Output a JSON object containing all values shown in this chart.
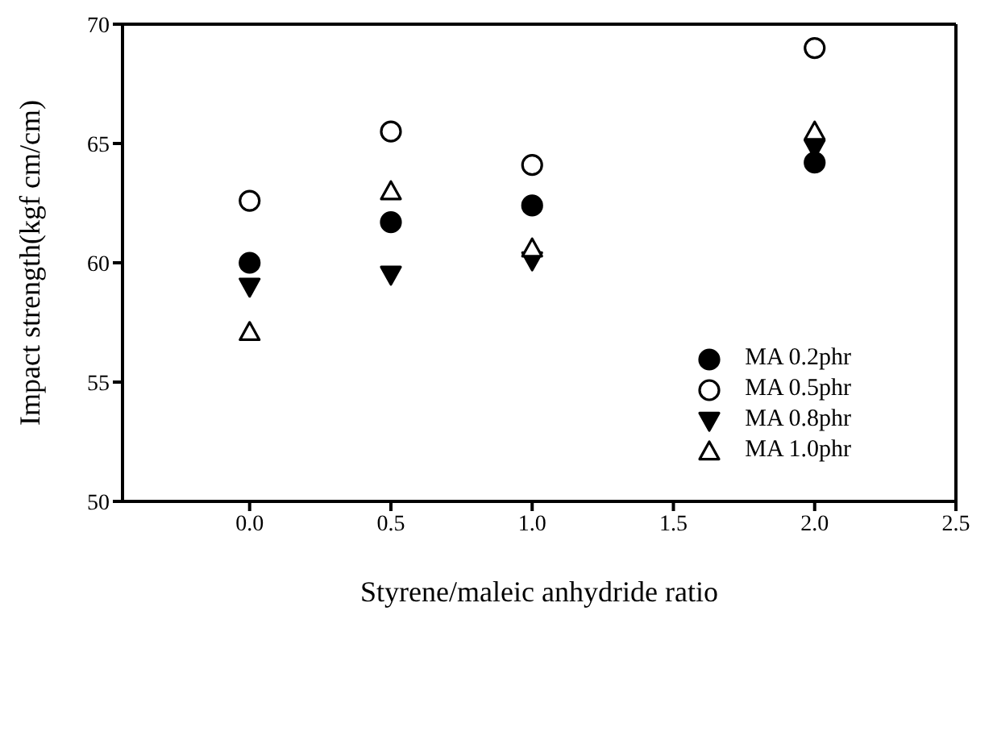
{
  "chart_data": {
    "type": "scatter",
    "xlabel": "Styrene/maleic anhydride ratio",
    "ylabel": "Impact strength(kgf cm/cm)",
    "x": [
      0,
      0.5,
      1,
      2
    ],
    "xlim": [
      -0.45,
      2.5
    ],
    "xticks": [
      {
        "value": 0,
        "label": "0.0"
      },
      {
        "value": 0.5,
        "label": "0.5"
      },
      {
        "value": 1,
        "label": "1.0"
      },
      {
        "value": 1.5,
        "label": "1.5"
      },
      {
        "value": 2,
        "label": "2.0"
      },
      {
        "value": 2.5,
        "label": "2.5"
      }
    ],
    "ylim": [
      50,
      70
    ],
    "yticks": [
      50,
      55,
      60,
      65,
      70
    ],
    "legend": "right",
    "series": [
      {
        "name": "MA 0.2phr",
        "color": "#000000",
        "marker": "circle",
        "values": [
          60.0,
          61.7,
          62.4,
          64.2
        ]
      },
      {
        "name": "MA 0.5phr",
        "color": "#000000",
        "marker": "circle-open",
        "values": [
          62.6,
          65.5,
          64.1,
          69.0
        ]
      },
      {
        "name": "MA 0.8phr",
        "color": "#000000",
        "marker": "triangle-down",
        "values": [
          59.0,
          59.5,
          60.1,
          64.8
        ]
      },
      {
        "name": "MA 1.0phr",
        "color": "#000000",
        "marker": "triangle-open",
        "values": [
          57.1,
          63.0,
          60.6,
          65.5
        ]
      }
    ]
  }
}
